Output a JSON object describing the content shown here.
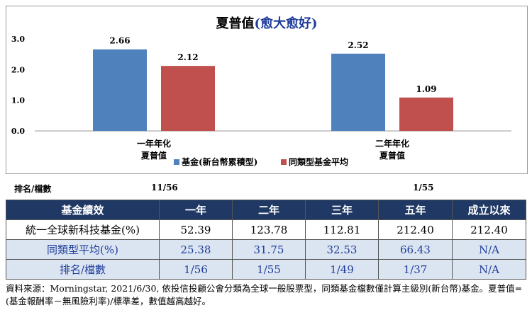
{
  "chart_data": {
    "type": "bar",
    "title": "夏普值",
    "title_note": "(愈大愈好)",
    "categories": [
      [
        "一年年化",
        "夏普值"
      ],
      [
        "二年年化",
        "夏普值"
      ]
    ],
    "series": [
      {
        "name": "基金(新台幣累積型)",
        "color": "#4f81bd",
        "values": [
          2.66,
          2.52
        ],
        "labels": [
          "2.66",
          "2.52"
        ]
      },
      {
        "name": "同類型基金平均",
        "color": "#c0504d",
        "values": [
          2.12,
          1.09
        ],
        "labels": [
          "2.12",
          "1.09"
        ]
      }
    ],
    "yticks": [
      "0.0",
      "1.0",
      "2.0",
      "3.0"
    ],
    "ylim": [
      0,
      3.0
    ],
    "grid": false,
    "legend": "bottom-center"
  },
  "rank": {
    "label": "排名/檔數",
    "values": [
      "11/56",
      "1/55"
    ]
  },
  "table": {
    "headers": [
      "基金績效",
      "一年",
      "二年",
      "三年",
      "五年",
      "成立以來"
    ],
    "rows": [
      {
        "cells": [
          "統一全球新科技基金(%)",
          "52.39",
          "123.78",
          "112.81",
          "212.40",
          "212.40"
        ],
        "style": "white"
      },
      {
        "cells": [
          "同類型平均(%)",
          "25.38",
          "31.75",
          "32.53",
          "66.43",
          "N/A"
        ],
        "style": "blue"
      },
      {
        "cells": [
          "排名/檔數",
          "1/56",
          "1/55",
          "1/49",
          "1/37",
          "N/A"
        ],
        "style": "blue"
      }
    ]
  },
  "footnote": "資料來源：Morningstar, 2021/6/30, 依投信投顧公會分類為全球一般股票型，同類基金檔數僅計算主級別(新台幣)基金。夏普值=(基金報酬率－無風險利率)/標準差，數值越高越好。"
}
